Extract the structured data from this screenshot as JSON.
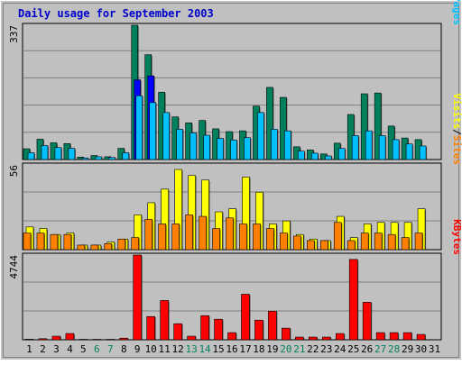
{
  "chart_data": {
    "type": "bar",
    "title": "Daily usage for September 2003",
    "categories": [
      "1",
      "2",
      "3",
      "4",
      "5",
      "6",
      "7",
      "8",
      "9",
      "10",
      "11",
      "12",
      "13",
      "14",
      "15",
      "16",
      "17",
      "18",
      "19",
      "20",
      "21",
      "22",
      "23",
      "24",
      "25",
      "26",
      "27",
      "28",
      "29",
      "30",
      "31"
    ],
    "weekend_days": [
      "6",
      "7",
      "13",
      "14",
      "20",
      "21",
      "27",
      "28"
    ],
    "colors": {
      "background": "#c0c0c0",
      "title": "#0000cc",
      "hits": "#00805c",
      "files": "#0000ff",
      "pages": "#00c0ff",
      "visits": "#ffff00",
      "sites": "#ff8000",
      "kbytes": "#ff0000",
      "weekend": "#00805c",
      "weekday": "#000000",
      "grid": "#808080"
    },
    "panels": [
      {
        "id": "hits",
        "max_label": "337",
        "ylim": [
          0,
          337
        ],
        "legend": [
          "Pages",
          "/",
          "Files",
          "/",
          "Hits"
        ],
        "series": [
          {
            "name": "Hits",
            "values": [
              27,
              51,
              42,
              40,
              6,
              10,
              7,
              28,
              337,
              263,
              169,
              107,
              92,
              98,
              77,
              70,
              72,
              134,
              181,
              156,
              32,
              24,
              14,
              41,
              113,
              165,
              167,
              84,
              54,
              50,
              0
            ]
          },
          {
            "name": "Files",
            "values": [
              0,
              0,
              0,
              0,
              0,
              0,
              0,
              0,
              200,
              210,
              0,
              0,
              0,
              0,
              0,
              0,
              0,
              0,
              0,
              0,
              0,
              0,
              0,
              0,
              0,
              0,
              0,
              0,
              0,
              0,
              0
            ]
          },
          {
            "name": "Pages",
            "values": [
              17,
              35,
              30,
              28,
              4,
              7,
              5,
              17,
              160,
              143,
              118,
              76,
              67,
              61,
              53,
              49,
              55,
              118,
              76,
              72,
              21,
              16,
              9,
              28,
              60,
              72,
              60,
              50,
              39,
              34,
              0
            ]
          }
        ]
      },
      {
        "id": "visits",
        "max_label": "56",
        "ylim": [
          0,
          56
        ],
        "legend": [
          "Sites",
          "/",
          "Visits"
        ],
        "series": [
          {
            "name": "Visits",
            "values": [
              15,
              14,
              10,
              11,
              3,
              3,
              5,
              7,
              23,
              31,
              40,
              53,
              49,
              46,
              25,
              27,
              48,
              38,
              17,
              19,
              10,
              7,
              6,
              22,
              8,
              17,
              18,
              18,
              18,
              27,
              0
            ]
          },
          {
            "name": "Sites",
            "values": [
              11,
              11,
              10,
              10,
              3,
              3,
              4,
              7,
              8,
              20,
              17,
              17,
              23,
              22,
              14,
              21,
              17,
              17,
              14,
              11,
              9,
              6,
              6,
              18,
              6,
              11,
              11,
              10,
              8,
              11,
              0
            ]
          }
        ]
      },
      {
        "id": "kbytes",
        "max_label": "4744",
        "ylim": [
          0,
          4744
        ],
        "legend": [
          "KBytes"
        ],
        "series": [
          {
            "name": "KBytes",
            "values": [
              30,
              60,
              200,
              350,
              25,
              25,
              25,
              90,
              4744,
              1300,
              2200,
              900,
              200,
              1350,
              1150,
              400,
              2550,
              1100,
              1600,
              650,
              150,
              150,
              150,
              350,
              4500,
              2100,
              400,
              400,
              400,
              300,
              0
            ]
          }
        ]
      }
    ]
  }
}
